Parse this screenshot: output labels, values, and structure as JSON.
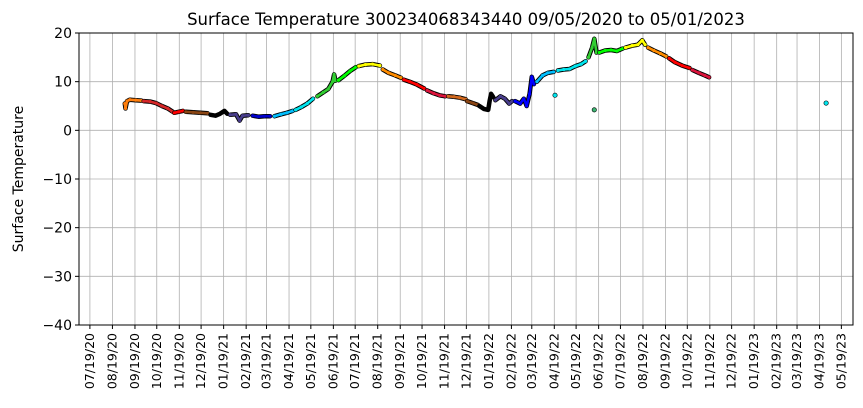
{
  "chart_data": {
    "type": "scatter",
    "title": "Surface Temperature 300234068343440  09/05/2020 to 05/01/2023",
    "ylabel": "Surface Temperature",
    "xlabel": "",
    "ylim": [
      -40,
      20
    ],
    "yticks": [
      -40,
      -30,
      -20,
      -10,
      0,
      10,
      20
    ],
    "x_range": [
      "2020-07-04",
      "2023-06-04"
    ],
    "grid": true,
    "xticks": [
      {
        "date": "2020-07-19",
        "label": "07/19/20"
      },
      {
        "date": "2020-08-19",
        "label": "08/19/20"
      },
      {
        "date": "2020-09-19",
        "label": "09/19/20"
      },
      {
        "date": "2020-10-19",
        "label": "10/19/20"
      },
      {
        "date": "2020-11-19",
        "label": "11/19/20"
      },
      {
        "date": "2020-12-19",
        "label": "12/19/20"
      },
      {
        "date": "2021-01-19",
        "label": "01/19/21"
      },
      {
        "date": "2021-02-19",
        "label": "02/19/21"
      },
      {
        "date": "2021-03-19",
        "label": "03/19/21"
      },
      {
        "date": "2021-04-19",
        "label": "04/19/21"
      },
      {
        "date": "2021-05-19",
        "label": "05/19/21"
      },
      {
        "date": "2021-06-19",
        "label": "06/19/21"
      },
      {
        "date": "2021-07-19",
        "label": "07/19/21"
      },
      {
        "date": "2021-08-19",
        "label": "08/19/21"
      },
      {
        "date": "2021-09-19",
        "label": "09/19/21"
      },
      {
        "date": "2021-10-19",
        "label": "10/19/21"
      },
      {
        "date": "2021-11-19",
        "label": "11/19/21"
      },
      {
        "date": "2021-12-19",
        "label": "12/19/21"
      },
      {
        "date": "2022-01-19",
        "label": "01/19/22"
      },
      {
        "date": "2022-02-19",
        "label": "02/19/22"
      },
      {
        "date": "2022-03-19",
        "label": "03/19/22"
      },
      {
        "date": "2022-04-19",
        "label": "04/19/22"
      },
      {
        "date": "2022-05-19",
        "label": "05/19/22"
      },
      {
        "date": "2022-06-19",
        "label": "06/19/22"
      },
      {
        "date": "2022-07-19",
        "label": "07/19/22"
      },
      {
        "date": "2022-08-19",
        "label": "08/19/22"
      },
      {
        "date": "2022-09-19",
        "label": "09/19/22"
      },
      {
        "date": "2022-10-19",
        "label": "10/19/22"
      },
      {
        "date": "2022-11-19",
        "label": "11/19/22"
      },
      {
        "date": "2022-12-19",
        "label": "12/19/22"
      },
      {
        "date": "2023-01-19",
        "label": "01/19/23"
      },
      {
        "date": "2023-02-19",
        "label": "02/19/23"
      },
      {
        "date": "2023-03-19",
        "label": "03/19/23"
      },
      {
        "date": "2023-04-19",
        "label": "04/19/23"
      },
      {
        "date": "2023-05-19",
        "label": "05/19/23"
      }
    ],
    "series": [
      {
        "color": "#ff7f0e",
        "points": [
          [
            "2020-09-05",
            5.5
          ],
          [
            "2020-09-06",
            4.5
          ],
          [
            "2020-09-08",
            6.0
          ],
          [
            "2020-09-12",
            6.3
          ],
          [
            "2020-09-20",
            6.2
          ],
          [
            "2020-09-28",
            6.1
          ]
        ]
      },
      {
        "color": "#d62728",
        "points": [
          [
            "2020-10-01",
            6.0
          ],
          [
            "2020-10-10",
            5.9
          ],
          [
            "2020-10-18",
            5.6
          ],
          [
            "2020-10-26",
            5.0
          ],
          [
            "2020-11-03",
            4.5
          ],
          [
            "2020-11-10",
            3.8
          ]
        ]
      },
      {
        "color": "#ff0000",
        "points": [
          [
            "2020-11-12",
            3.6
          ],
          [
            "2020-11-18",
            3.8
          ],
          [
            "2020-11-24",
            4.0
          ]
        ]
      },
      {
        "color": "#8b4513",
        "points": [
          [
            "2020-11-28",
            3.8
          ],
          [
            "2020-12-08",
            3.7
          ],
          [
            "2020-12-18",
            3.6
          ],
          [
            "2020-12-28",
            3.5
          ]
        ]
      },
      {
        "color": "#000000",
        "points": [
          [
            "2021-01-01",
            3.2
          ],
          [
            "2021-01-08",
            3.0
          ],
          [
            "2021-01-14",
            3.4
          ],
          [
            "2021-01-20",
            4.0
          ],
          [
            "2021-01-24",
            3.4
          ]
        ]
      },
      {
        "color": "#483d8b",
        "points": [
          [
            "2021-01-28",
            3.2
          ],
          [
            "2021-02-05",
            3.3
          ],
          [
            "2021-02-10",
            2.0
          ],
          [
            "2021-02-14",
            3.0
          ],
          [
            "2021-02-22",
            3.1
          ]
        ]
      },
      {
        "color": "#0000cd",
        "points": [
          [
            "2021-02-28",
            3.0
          ],
          [
            "2021-03-08",
            2.8
          ],
          [
            "2021-03-16",
            2.9
          ],
          [
            "2021-03-24",
            2.9
          ]
        ]
      },
      {
        "color": "#00bfff",
        "points": [
          [
            "2021-03-30",
            2.9
          ],
          [
            "2021-04-08",
            3.3
          ],
          [
            "2021-04-16",
            3.6
          ],
          [
            "2021-04-24",
            4.0
          ]
        ]
      },
      {
        "color": "#00e5ee",
        "points": [
          [
            "2021-04-28",
            4.2
          ],
          [
            "2021-05-06",
            4.8
          ],
          [
            "2021-05-14",
            5.5
          ],
          [
            "2021-05-22",
            6.5
          ]
        ]
      },
      {
        "color": "#32cd32",
        "points": [
          [
            "2021-05-28",
            7.0
          ],
          [
            "2021-06-05",
            7.8
          ],
          [
            "2021-06-12",
            8.5
          ],
          [
            "2021-06-18",
            10.0
          ],
          [
            "2021-06-20",
            11.5
          ],
          [
            "2021-06-22",
            10.2
          ]
        ]
      },
      {
        "color": "#00ff00",
        "points": [
          [
            "2021-06-26",
            10.3
          ],
          [
            "2021-07-04",
            11.2
          ],
          [
            "2021-07-12",
            12.2
          ],
          [
            "2021-07-20",
            13.0
          ]
        ]
      },
      {
        "color": "#ffff00",
        "points": [
          [
            "2021-07-24",
            13.2
          ],
          [
            "2021-08-02",
            13.5
          ],
          [
            "2021-08-12",
            13.6
          ],
          [
            "2021-08-22",
            13.3
          ]
        ]
      },
      {
        "color": "#ff8c00",
        "points": [
          [
            "2021-08-26",
            12.5
          ],
          [
            "2021-09-03",
            11.8
          ],
          [
            "2021-09-12",
            11.3
          ],
          [
            "2021-09-20",
            10.8
          ]
        ]
      },
      {
        "color": "#ff0000",
        "points": [
          [
            "2021-09-24",
            10.4
          ],
          [
            "2021-10-02",
            10.0
          ],
          [
            "2021-10-12",
            9.4
          ],
          [
            "2021-10-22",
            8.6
          ]
        ]
      },
      {
        "color": "#dc143c",
        "points": [
          [
            "2021-10-26",
            8.2
          ],
          [
            "2021-11-04",
            7.6
          ],
          [
            "2021-11-12",
            7.2
          ],
          [
            "2021-11-20",
            7.0
          ]
        ]
      },
      {
        "color": "#d2691e",
        "points": [
          [
            "2021-11-24",
            7.0
          ],
          [
            "2021-12-02",
            6.9
          ],
          [
            "2021-12-10",
            6.7
          ],
          [
            "2021-12-18",
            6.4
          ]
        ]
      },
      {
        "color": "#8b4513",
        "points": [
          [
            "2021-12-20",
            6.0
          ],
          [
            "2021-12-28",
            5.6
          ],
          [
            "2022-01-04",
            5.2
          ]
        ]
      },
      {
        "color": "#000000",
        "points": [
          [
            "2022-01-06",
            5.0
          ],
          [
            "2022-01-12",
            4.4
          ],
          [
            "2022-01-18",
            4.2
          ],
          [
            "2022-01-20",
            6.0
          ],
          [
            "2022-01-22",
            7.5
          ],
          [
            "2022-01-25",
            6.8
          ]
        ]
      },
      {
        "color": "#483d8b",
        "points": [
          [
            "2022-01-28",
            6.2
          ],
          [
            "2022-02-04",
            7.0
          ],
          [
            "2022-02-10",
            6.5
          ],
          [
            "2022-02-16",
            5.5
          ],
          [
            "2022-02-20",
            6.0
          ]
        ]
      },
      {
        "color": "#0000ff",
        "points": [
          [
            "2022-02-24",
            6.0
          ],
          [
            "2022-03-03",
            5.5
          ],
          [
            "2022-03-08",
            6.5
          ],
          [
            "2022-03-12",
            5.0
          ],
          [
            "2022-03-16",
            7.5
          ],
          [
            "2022-03-19",
            11.0
          ],
          [
            "2022-03-22",
            9.5
          ]
        ]
      },
      {
        "color": "#00bfff",
        "points": [
          [
            "2022-03-26",
            10.0
          ],
          [
            "2022-04-03",
            11.3
          ],
          [
            "2022-04-10",
            11.8
          ],
          [
            "2022-04-18",
            12.0
          ]
        ]
      },
      {
        "color": "#00e5ee",
        "points": [
          [
            "2022-04-20",
            7.2
          ]
        ]
      },
      {
        "color": "#00e5ee",
        "points": [
          [
            "2022-04-24",
            12.3
          ],
          [
            "2022-05-02",
            12.5
          ],
          [
            "2022-05-10",
            12.6
          ],
          [
            "2022-05-18",
            13.2
          ],
          [
            "2022-05-26",
            13.6
          ],
          [
            "2022-06-01",
            14.2
          ]
        ]
      },
      {
        "color": "#32cd32",
        "points": [
          [
            "2022-06-05",
            15.0
          ],
          [
            "2022-06-10",
            17.0
          ],
          [
            "2022-06-13",
            18.8
          ],
          [
            "2022-06-16",
            16.0
          ]
        ]
      },
      {
        "color": "#3cb371",
        "points": [
          [
            "2022-06-13",
            4.2
          ]
        ]
      },
      {
        "color": "#00ff00",
        "points": [
          [
            "2022-06-20",
            16.0
          ],
          [
            "2022-06-28",
            16.4
          ],
          [
            "2022-07-06",
            16.5
          ],
          [
            "2022-07-14",
            16.3
          ],
          [
            "2022-07-22",
            16.8
          ]
        ]
      },
      {
        "color": "#ffff00",
        "points": [
          [
            "2022-07-26",
            17.0
          ],
          [
            "2022-08-04",
            17.4
          ],
          [
            "2022-08-12",
            17.6
          ],
          [
            "2022-08-18",
            18.5
          ],
          [
            "2022-08-22",
            17.6
          ]
        ]
      },
      {
        "color": "#ff8c00",
        "points": [
          [
            "2022-08-26",
            17.0
          ],
          [
            "2022-09-03",
            16.4
          ],
          [
            "2022-09-12",
            15.8
          ],
          [
            "2022-09-20",
            15.2
          ]
        ]
      },
      {
        "color": "#ff0000",
        "points": [
          [
            "2022-09-24",
            14.8
          ],
          [
            "2022-10-02",
            14.0
          ],
          [
            "2022-10-12",
            13.3
          ],
          [
            "2022-10-22",
            12.8
          ]
        ]
      },
      {
        "color": "#dc143c",
        "points": [
          [
            "2022-10-26",
            12.4
          ],
          [
            "2022-11-04",
            11.8
          ],
          [
            "2022-11-12",
            11.3
          ],
          [
            "2022-11-18",
            10.9
          ]
        ]
      },
      {
        "color": "#00e5ee",
        "points": [
          [
            "2023-04-28",
            5.6
          ]
        ]
      }
    ]
  }
}
